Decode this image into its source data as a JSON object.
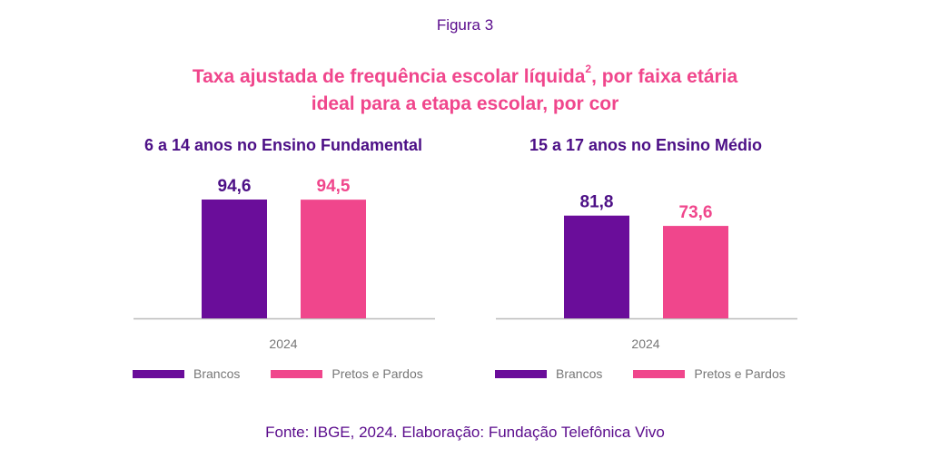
{
  "figure_label": "Figura 3",
  "title": {
    "line1_main": "Taxa ajustada de frequência escolar líquida",
    "line1_sup": "2",
    "line1_rest": ", por faixa etária",
    "line2": "ideal para a etapa escolar, por cor"
  },
  "source": "Fonte: IBGE, 2024. Elaboração: Fundação Telefônica Vivo",
  "colors": {
    "brancos": "#6a0d9a",
    "pretos_pardos": "#f0468c",
    "axis": "#bbbbbb"
  },
  "chart_data": [
    {
      "type": "bar",
      "title": "6 a 14 anos no Ensino Fundamental",
      "categories": [
        "2024"
      ],
      "series": [
        {
          "name": "Brancos",
          "values": [
            94.6
          ],
          "label": "94,6"
        },
        {
          "name": "Pretos e Pardos",
          "values": [
            94.5
          ],
          "label": "94,5"
        }
      ],
      "legend": "bottom"
    },
    {
      "type": "bar",
      "title": "15 a 17 anos no Ensino Médio",
      "categories": [
        "2024"
      ],
      "series": [
        {
          "name": "Brancos",
          "values": [
            81.8
          ],
          "label": "81,8"
        },
        {
          "name": "Pretos e Pardos",
          "values": [
            73.6
          ],
          "label": "73,6"
        }
      ],
      "legend": "bottom"
    }
  ]
}
